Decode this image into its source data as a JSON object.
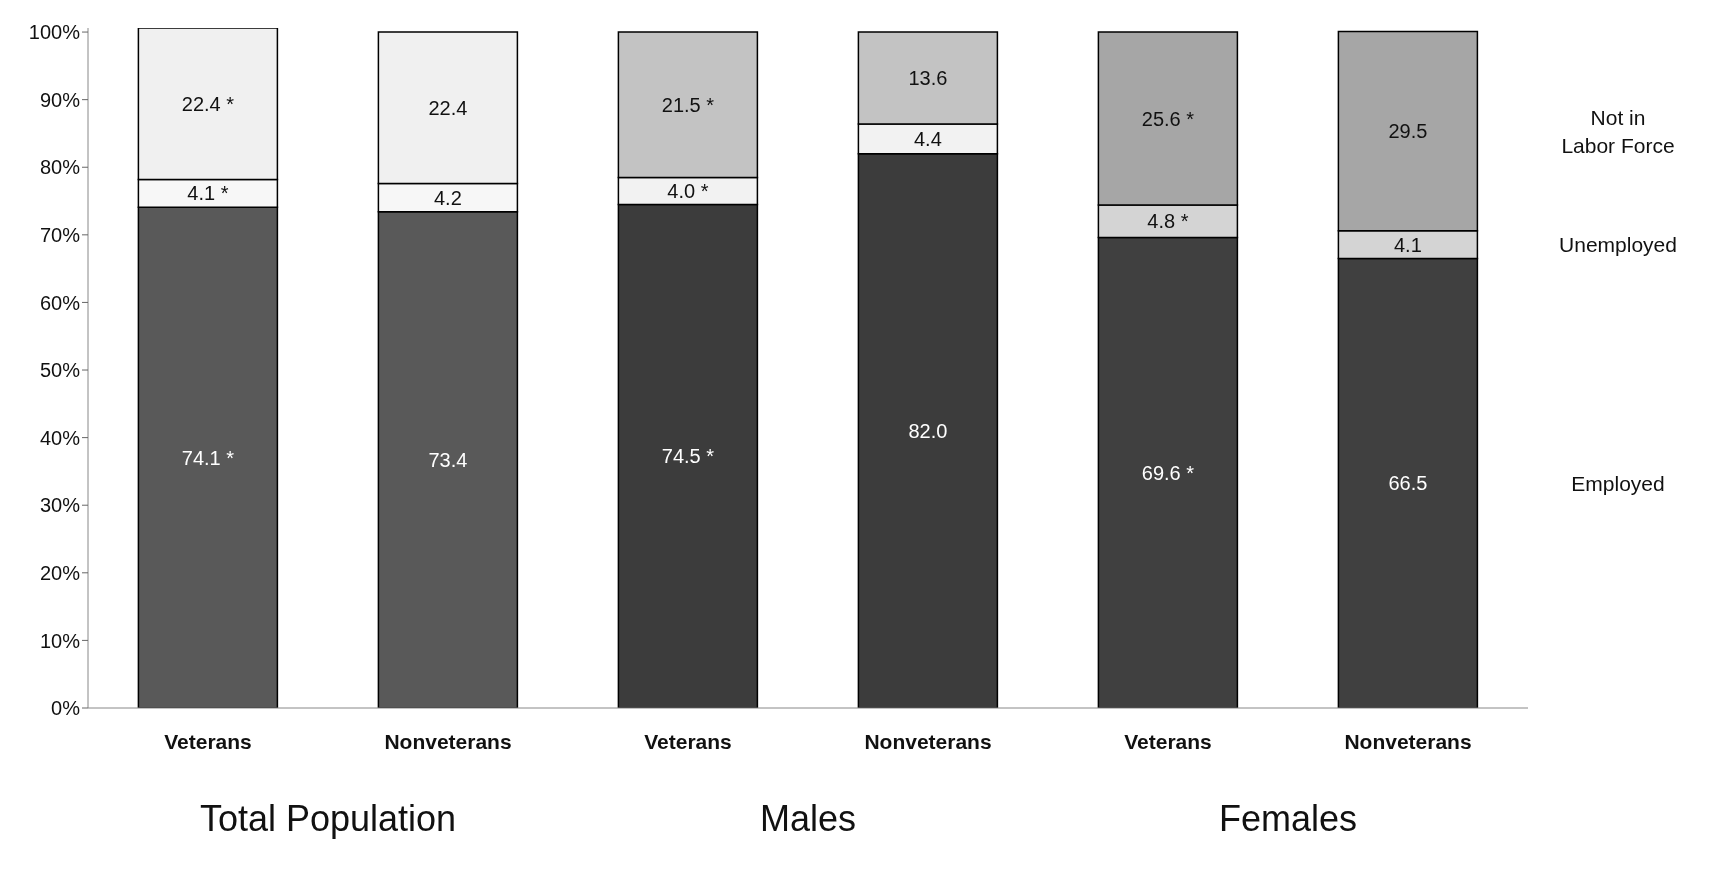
{
  "chart_data": {
    "type": "bar",
    "stacked": true,
    "categories": [
      "Veterans",
      "Nonveterans",
      "Veterans",
      "Nonveterans",
      "Veterans",
      "Nonveterans"
    ],
    "series": [
      {
        "name": "Employed",
        "colors": [
          "#595959",
          "#595959",
          "#3c3c3c",
          "#3c3c3c",
          "#404040",
          "#404040"
        ],
        "values": [
          74.1,
          73.4,
          74.5,
          82.0,
          69.6,
          66.5
        ],
        "value_labels": [
          "74.1 *",
          "73.4",
          "74.5 *",
          "82.0",
          "69.6 *",
          "66.5"
        ]
      },
      {
        "name": "Unemployed",
        "colors": [
          "#f7f7f7",
          "#f7f7f7",
          "#f2f2f2",
          "#f2f2f2",
          "#d4d4d4",
          "#d4d4d4"
        ],
        "values": [
          4.1,
          4.2,
          4.0,
          4.4,
          4.8,
          4.1
        ],
        "value_labels": [
          "4.1 *",
          "4.2",
          "4.0 *",
          "4.4",
          "4.8 *",
          "4.1"
        ]
      },
      {
        "name": "Not in Labor Force",
        "colors": [
          "#f0f0f0",
          "#f0f0f0",
          "#c3c3c3",
          "#c3c3c3",
          "#a6a6a6",
          "#a6a6a6"
        ],
        "values": [
          22.4,
          22.4,
          21.5,
          13.6,
          25.6,
          29.5
        ],
        "value_labels": [
          "22.4 *",
          "22.4",
          "21.5 *",
          "13.6",
          "25.6 *",
          "29.5"
        ]
      }
    ],
    "ylim": [
      0,
      100.6
    ],
    "yticks": [
      {
        "value": 0,
        "label": "0%"
      },
      {
        "value": 10,
        "label": "10%"
      },
      {
        "value": 20,
        "label": "20%"
      },
      {
        "value": 30,
        "label": "30%"
      },
      {
        "value": 40,
        "label": "40%"
      },
      {
        "value": 50,
        "label": "50%"
      },
      {
        "value": 60,
        "label": "60%"
      },
      {
        "value": 70,
        "label": "70%"
      },
      {
        "value": 80,
        "label": "80%"
      },
      {
        "value": 90,
        "label": "90%"
      },
      {
        "value": 100,
        "label": "100%"
      }
    ],
    "annotations": [
      "Total Population",
      "Males",
      "Females"
    ],
    "grid": false
  }
}
